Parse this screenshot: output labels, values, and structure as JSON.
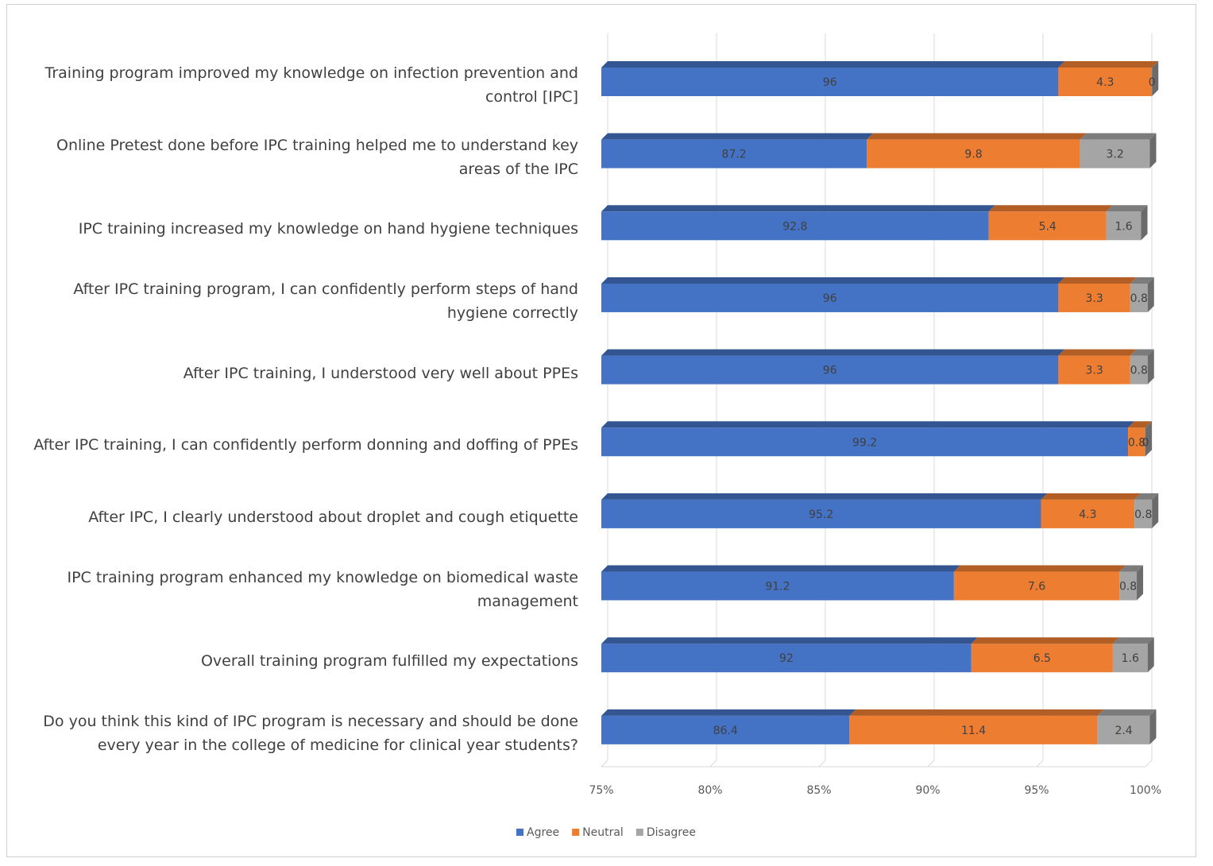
{
  "chart_data": {
    "type": "stacked-bar-horizontal-3d",
    "categories": [
      "Training program improved my knowledge on infection prevention and control [IPC]",
      "Online Pretest done before IPC training helped me to understand key areas of the IPC",
      "IPC training increased my knowledge on hand hygiene techniques",
      "After IPC training program, I can confidently perform steps of hand hygiene correctly",
      "After IPC training, I understood very well about PPEs",
      "After IPC training, I can confidently perform donning and doffing of PPEs",
      "After IPC, I clearly understood about droplet and cough etiquette",
      "IPC training program enhanced my knowledge on biomedical waste management",
      "Overall training program fulfilled my expectations",
      "Do you think this kind of IPC program is necessary and should be done every year in the college of medicine for clinical year students?"
    ],
    "series": [
      {
        "name": "Agree",
        "color": "#4472c4",
        "values": [
          96,
          87.2,
          92.8,
          96,
          96,
          99.2,
          95.2,
          91.2,
          92,
          86.4
        ]
      },
      {
        "name": "Neutral",
        "color": "#ed7d31",
        "values": [
          4.3,
          9.8,
          5.4,
          3.3,
          3.3,
          0.8,
          4.3,
          7.6,
          6.5,
          11.4
        ]
      },
      {
        "name": "Disagree",
        "color": "#a5a5a5",
        "values": [
          0,
          3.2,
          1.6,
          0.8,
          0.8,
          0,
          0.8,
          0.8,
          1.6,
          2.4
        ]
      }
    ],
    "xlim": [
      75,
      100
    ],
    "xticks": [
      {
        "value": 75,
        "label": "75%"
      },
      {
        "value": 80,
        "label": "80%"
      },
      {
        "value": 85,
        "label": "85%"
      },
      {
        "value": 90,
        "label": "90%"
      },
      {
        "value": 95,
        "label": "95%"
      },
      {
        "value": 100,
        "label": "100%"
      }
    ],
    "grid": true,
    "legend": "bottom"
  }
}
